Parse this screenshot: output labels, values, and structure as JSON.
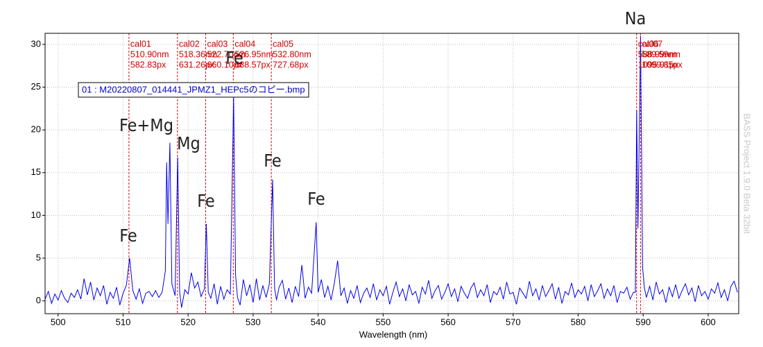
{
  "chart_data": {
    "type": "line",
    "x_label": "Wavelength (nm)",
    "watermark": "BASS Project 1.9.0 Beta 32bit",
    "xlim": [
      498,
      604.7
    ],
    "ylim": [
      -1.5,
      31.3
    ],
    "xticks": [
      500,
      510,
      520,
      530,
      540,
      550,
      560,
      570,
      580,
      590,
      600
    ],
    "yticks": [
      0,
      5,
      10,
      15,
      20,
      25,
      30
    ],
    "grid": true,
    "x": [
      498,
      498.5,
      499,
      499.5,
      500,
      500.5,
      501,
      501.5,
      502,
      502.5,
      503,
      503.5,
      504,
      504.5,
      505,
      505.5,
      506,
      506.5,
      507,
      507.5,
      508,
      508.5,
      509,
      509.5,
      510,
      510.5,
      511,
      511.5,
      512,
      512.5,
      513,
      513.5,
      514,
      514.5,
      515,
      515.5,
      516,
      516.5,
      516.7,
      516.9,
      517.2,
      517.5,
      518,
      518.4,
      518.7,
      519,
      519.5,
      520,
      520.5,
      521,
      521.5,
      522,
      522.5,
      522.8,
      523.1,
      523.5,
      524,
      524.5,
      525,
      525.5,
      526,
      526.5,
      527,
      527.3,
      527.6,
      528,
      528.5,
      529,
      529.5,
      530,
      530.5,
      531,
      531.5,
      532,
      532.5,
      533,
      533.3,
      533.6,
      534,
      534.5,
      535,
      535.5,
      536,
      536.5,
      537,
      537.5,
      538,
      538.5,
      539,
      539.7,
      540,
      540.5,
      541,
      541.5,
      542,
      542.5,
      543,
      543.5,
      544,
      544.5,
      545,
      545.5,
      546,
      546.5,
      547,
      547.5,
      548,
      548.5,
      549,
      549.5,
      550,
      550.5,
      551,
      551.5,
      552,
      552.5,
      553,
      553.5,
      554,
      554.5,
      555,
      555.5,
      556,
      556.5,
      557,
      557.5,
      558,
      558.5,
      559,
      559.5,
      560,
      560.5,
      561,
      561.5,
      562,
      562.5,
      563,
      563.5,
      564,
      564.5,
      565,
      565.5,
      566,
      566.5,
      567,
      567.5,
      568,
      568.5,
      569,
      569.5,
      570,
      570.5,
      571,
      571.5,
      572,
      572.5,
      573,
      573.5,
      574,
      574.5,
      575,
      575.5,
      576,
      576.5,
      577,
      577.5,
      578,
      578.5,
      579,
      579.5,
      580,
      580.5,
      581,
      581.5,
      582,
      582.5,
      583,
      583.5,
      584,
      584.5,
      585,
      585.5,
      586,
      586.5,
      587,
      587.5,
      588,
      588.5,
      588.8,
      589,
      589.2,
      589.6,
      589.9,
      590.2,
      590.5,
      591,
      591.5,
      592,
      592.5,
      593,
      593.5,
      594,
      594.5,
      595,
      595.5,
      596,
      596.5,
      597,
      597.5,
      598,
      598.5,
      599,
      599.5,
      600,
      600.5,
      601,
      601.5,
      602,
      602.5,
      603,
      603.5,
      604,
      604.5
    ],
    "series": [
      {
        "name": "01 : M20220807_014441_JPMZ1_HEPc5のコピー.bmp",
        "color": "#0000ee",
        "values": [
          0.2,
          1.1,
          -0.3,
          0.8,
          0.1,
          1.2,
          0.3,
          -0.2,
          0.9,
          0.4,
          1.3,
          0.2,
          2.6,
          0.7,
          2.2,
          0.1,
          1.5,
          0.6,
          1.8,
          -0.4,
          1.0,
          0.3,
          1.6,
          -0.5,
          0.9,
          1.8,
          5.0,
          1.2,
          0.2,
          1.4,
          -0.3,
          0.9,
          1.1,
          0.5,
          1.2,
          0.4,
          1.0,
          3.5,
          16.2,
          9.0,
          18.5,
          2.0,
          0.6,
          16.8,
          1.0,
          -0.8,
          1.3,
          0.8,
          3.3,
          1.5,
          2.2,
          0.5,
          1.4,
          9.0,
          1.0,
          0.3,
          2.0,
          -0.4,
          1.7,
          0.2,
          1.3,
          0.8,
          24.0,
          3.0,
          0.4,
          -0.5,
          2.5,
          0.6,
          1.9,
          -0.2,
          2.6,
          0.1,
          1.8,
          0.4,
          2.0,
          14.2,
          1.5,
          0.1,
          1.6,
          2.4,
          0.2,
          1.5,
          -0.2,
          1.7,
          0.5,
          4.2,
          0.3,
          1.6,
          0.9,
          9.2,
          1.0,
          2.5,
          0.4,
          1.7,
          0.1,
          2.1,
          4.7,
          0.6,
          1.5,
          -0.3,
          1.2,
          0.3,
          1.8,
          -0.2,
          0.9,
          1.5,
          0.4,
          2.0,
          0.1,
          1.3,
          0.6,
          1.7,
          -0.4,
          1.0,
          2.2,
          0.5,
          1.4,
          0.0,
          1.9,
          0.7,
          1.1,
          -0.3,
          1.6,
          0.8,
          2.4,
          0.3,
          1.2,
          1.8,
          0.2,
          1.0,
          2.0,
          0.5,
          1.4,
          -0.1,
          1.7,
          0.9,
          0.3,
          1.5,
          2.1,
          0.4,
          1.3,
          0.6,
          1.9,
          -0.2,
          1.1,
          0.7,
          1.6,
          0.2,
          2.2,
          0.8,
          1.0,
          -0.4,
          1.5,
          0.9,
          0.3,
          2.3,
          0.6,
          1.4,
          0.1,
          1.8,
          0.5,
          1.2,
          2.0,
          0.2,
          1.6,
          -0.3,
          1.1,
          0.7,
          2.1,
          0.4,
          1.3,
          0.8,
          1.7,
          0.0,
          1.9,
          0.5,
          1.2,
          2.0,
          0.3,
          1.4,
          0.6,
          1.8,
          -0.2,
          1.1,
          0.9,
          1.6,
          0.2,
          1.0,
          1.0,
          22.3,
          8.5,
          31.0,
          4.0,
          1.5,
          0.4,
          1.7,
          0.1,
          2.2,
          0.8,
          1.3,
          -0.2,
          1.6,
          0.5,
          1.9,
          0.3,
          1.2,
          2.0,
          0.7,
          1.5,
          -0.1,
          1.8,
          0.6,
          1.1,
          0.2,
          1.4,
          0.9,
          2.1,
          0.4,
          1.3,
          0.0,
          1.7,
          2.3,
          1.0
        ]
      }
    ],
    "calibrations": [
      {
        "name": "cal01",
        "wavelength": {
          "value": 510.9,
          "label": "510.90nm"
        },
        "pixel": "582.83px"
      },
      {
        "name": "cal02",
        "wavelength": {
          "value": 518.36,
          "label": "518.36nm"
        },
        "pixel": "631.26px"
      },
      {
        "name": "cal03",
        "wavelength": {
          "value": 522.7,
          "label": "522.70nm"
        },
        "pixel": "660.10px"
      },
      {
        "name": "cal04",
        "wavelength": {
          "value": 526.95,
          "label": "526.95nm"
        },
        "pixel": "688.57px"
      },
      {
        "name": "cal05",
        "wavelength": {
          "value": 532.8,
          "label": "532.80nm"
        },
        "pixel": "727.68px"
      },
      {
        "name": "cal06",
        "wavelength": {
          "value": 588.99,
          "label": "588.99nm"
        },
        "pixel": "1095.91px"
      },
      {
        "name": "cal07",
        "wavelength": {
          "value": 589.59,
          "label": "589.59nm"
        },
        "pixel": "1099.85px"
      }
    ],
    "annotations": [
      "Fe",
      "Fe+Mg",
      "Mg",
      "Fe",
      "Fe",
      "Fe",
      "Fe",
      "Na"
    ]
  }
}
